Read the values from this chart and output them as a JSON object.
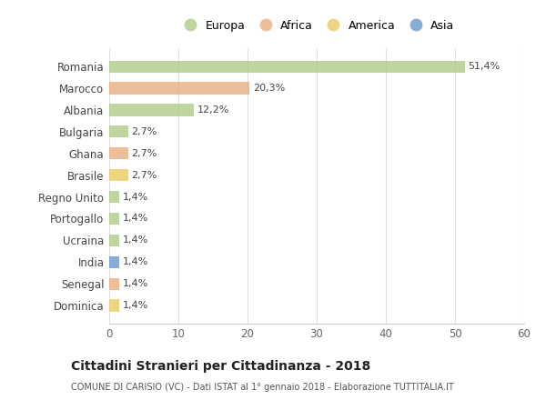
{
  "countries": [
    "Romania",
    "Marocco",
    "Albania",
    "Bulgaria",
    "Ghana",
    "Brasile",
    "Regno Unito",
    "Portogallo",
    "Ucraina",
    "India",
    "Senegal",
    "Dominica"
  ],
  "values": [
    51.4,
    20.3,
    12.2,
    2.7,
    2.7,
    2.7,
    1.4,
    1.4,
    1.4,
    1.4,
    1.4,
    1.4
  ],
  "labels": [
    "51,4%",
    "20,3%",
    "12,2%",
    "2,7%",
    "2,7%",
    "2,7%",
    "1,4%",
    "1,4%",
    "1,4%",
    "1,4%",
    "1,4%",
    "1,4%"
  ],
  "continents": [
    "Europa",
    "Africa",
    "Europa",
    "Europa",
    "Africa",
    "America",
    "Europa",
    "Europa",
    "Europa",
    "Asia",
    "Africa",
    "America"
  ],
  "colors": {
    "Europa": "#a8c880",
    "Africa": "#e8a878",
    "America": "#e8c858",
    "Asia": "#6090c8"
  },
  "legend_order": [
    "Europa",
    "Africa",
    "America",
    "Asia"
  ],
  "xlim": [
    0,
    60
  ],
  "xticks": [
    0,
    10,
    20,
    30,
    40,
    50,
    60
  ],
  "title": "Cittadini Stranieri per Cittadinanza - 2018",
  "subtitle": "COMUNE DI CARISIO (VC) - Dati ISTAT al 1° gennaio 2018 - Elaborazione TUTTITALIA.IT",
  "background_color": "#ffffff",
  "bar_alpha": 0.75,
  "bar_height": 0.55
}
